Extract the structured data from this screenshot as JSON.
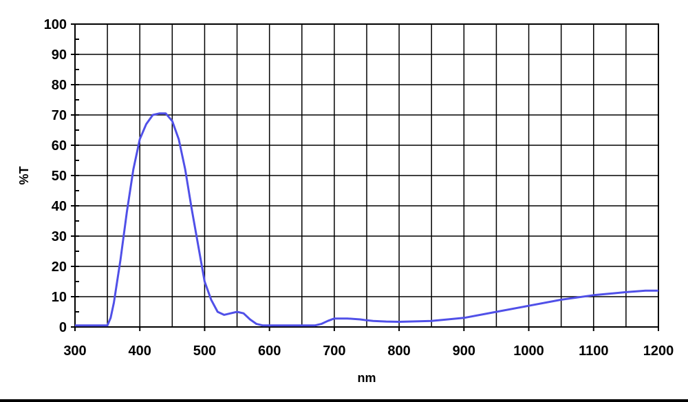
{
  "chart_data": {
    "type": "line",
    "title": "",
    "xlabel": "nm",
    "ylabel": "%T",
    "xlim": [
      300,
      1200
    ],
    "ylim": [
      0,
      100
    ],
    "x_ticks": [
      300,
      400,
      500,
      600,
      700,
      800,
      900,
      1000,
      1100,
      1200
    ],
    "y_ticks": [
      0,
      10,
      20,
      30,
      40,
      50,
      60,
      70,
      80,
      90,
      100
    ],
    "grid": true,
    "series": [
      {
        "name": "",
        "color": "#5050e8",
        "x": [
          300,
          350,
          355,
          360,
          370,
          380,
          390,
          400,
          410,
          420,
          430,
          440,
          450,
          460,
          470,
          480,
          490,
          500,
          510,
          520,
          530,
          540,
          550,
          560,
          570,
          580,
          590,
          600,
          650,
          670,
          680,
          690,
          700,
          720,
          740,
          750,
          760,
          780,
          800,
          850,
          900,
          950,
          1000,
          1050,
          1100,
          1150,
          1180,
          1200
        ],
        "y": [
          0.5,
          0.5,
          3,
          8,
          22,
          38,
          52,
          62,
          67,
          70,
          70.5,
          70.5,
          68,
          62,
          52,
          39,
          27,
          15,
          9,
          5,
          4,
          4.5,
          5,
          4.5,
          2.5,
          1,
          0.5,
          0.5,
          0.5,
          0.5,
          1,
          2,
          2.8,
          2.8,
          2.5,
          2.2,
          2,
          1.8,
          1.7,
          2,
          3,
          5,
          7,
          9,
          10.5,
          11.5,
          12,
          12
        ]
      }
    ]
  }
}
